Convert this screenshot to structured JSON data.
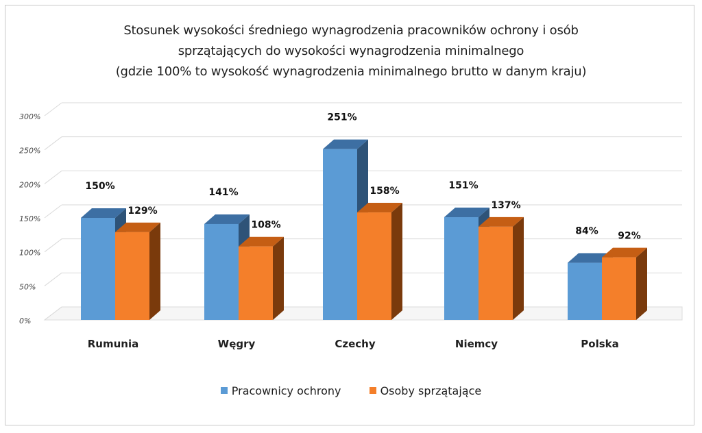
{
  "chart_data": {
    "type": "bar",
    "title": [
      "Stosunek wysokości średniego wynagrodzenia pracowników ochrony i osób",
      "sprzątających do wysokości wynagrodzenia minimalnego",
      "(gdzie 100% to wysokość wynagrodzenia minimalnego brutto w danym kraju)"
    ],
    "categories": [
      "Rumunia",
      "Węgry",
      "Czechy",
      "Niemcy",
      "Polska"
    ],
    "series": [
      {
        "name": "Pracownicy ochrony",
        "values": [
          150,
          141,
          251,
          151,
          84
        ],
        "labels": [
          "150%",
          "141%",
          "251%",
          "151%",
          "84%"
        ],
        "color": "#5b9bd5"
      },
      {
        "name": "Osoby sprzątające",
        "values": [
          129,
          108,
          158,
          137,
          92
        ],
        "labels": [
          "129%",
          "108%",
          "158%",
          "137%",
          "92%"
        ],
        "color": "#f47f2a"
      }
    ],
    "yticks": [
      "0%",
      "50%",
      "100%",
      "150%",
      "200%",
      "250%",
      "300%"
    ],
    "ylim": [
      0,
      300
    ],
    "grid": true,
    "legend_position": "bottom",
    "style": "3d"
  }
}
